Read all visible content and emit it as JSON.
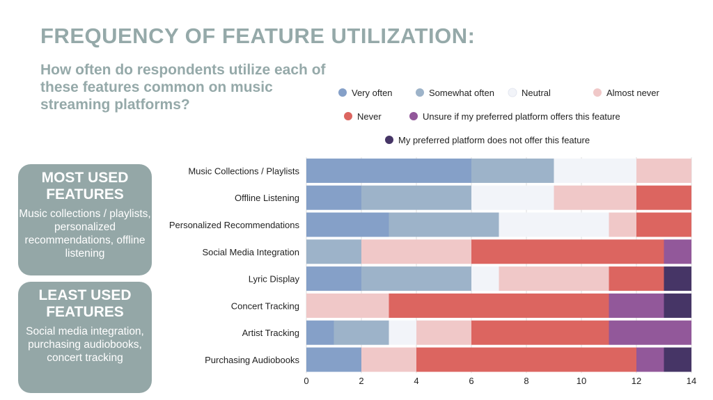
{
  "title": "FREQUENCY OF FEATURE UTILIZATION:",
  "subtitle": "How often do respondents utilize each of these features common on music streaming platforms?",
  "most_used": {
    "heading": "MOST USED FEATURES",
    "text": "Music collections / playlists, personalized recommendations, offline listening"
  },
  "least_used": {
    "heading": "LEAST USED FEATURES",
    "text": "Social media integration, purchasing audiobooks, concert tracking"
  },
  "chart_data": {
    "type": "bar",
    "orientation": "horizontal-stacked",
    "categories": [
      "Music Collections / Playlists",
      "Offline Listening",
      "Personalized Recommendations",
      "Social Media Integration",
      "Lyric Display",
      "Concert Tracking",
      "Artist Tracking",
      "Purchasing Audiobooks"
    ],
    "series": [
      {
        "name": "Very often",
        "color": "#85a0c8",
        "values": [
          6,
          2,
          3,
          0,
          2,
          0,
          1,
          2
        ]
      },
      {
        "name": "Somewhat often",
        "color": "#9db3c9",
        "values": [
          3,
          4,
          4,
          2,
          4,
          0,
          2,
          0
        ]
      },
      {
        "name": "Neutral",
        "color": "#f2f4f9",
        "values": [
          3,
          3,
          4,
          0,
          1,
          0,
          1,
          0
        ]
      },
      {
        "name": "Almost never",
        "color": "#f0c8c8",
        "values": [
          2,
          3,
          1,
          4,
          4,
          3,
          2,
          2
        ]
      },
      {
        "name": "Never",
        "color": "#dc6560",
        "values": [
          0,
          2,
          2,
          7,
          2,
          8,
          5,
          8
        ]
      },
      {
        "name": "Unsure if my preferred platform offers this feature",
        "color": "#92589a",
        "values": [
          0,
          0,
          0,
          1,
          0,
          2,
          3,
          1
        ]
      },
      {
        "name": "My preferred platform does not offer this feature",
        "color": "#463566",
        "values": [
          0,
          0,
          0,
          0,
          1,
          1,
          0,
          1
        ]
      }
    ],
    "xlim": [
      0,
      14
    ],
    "xticks": [
      "0",
      "2",
      "4",
      "6",
      "8",
      "10",
      "12",
      "14"
    ],
    "legend": "top-right",
    "grid": true
  }
}
